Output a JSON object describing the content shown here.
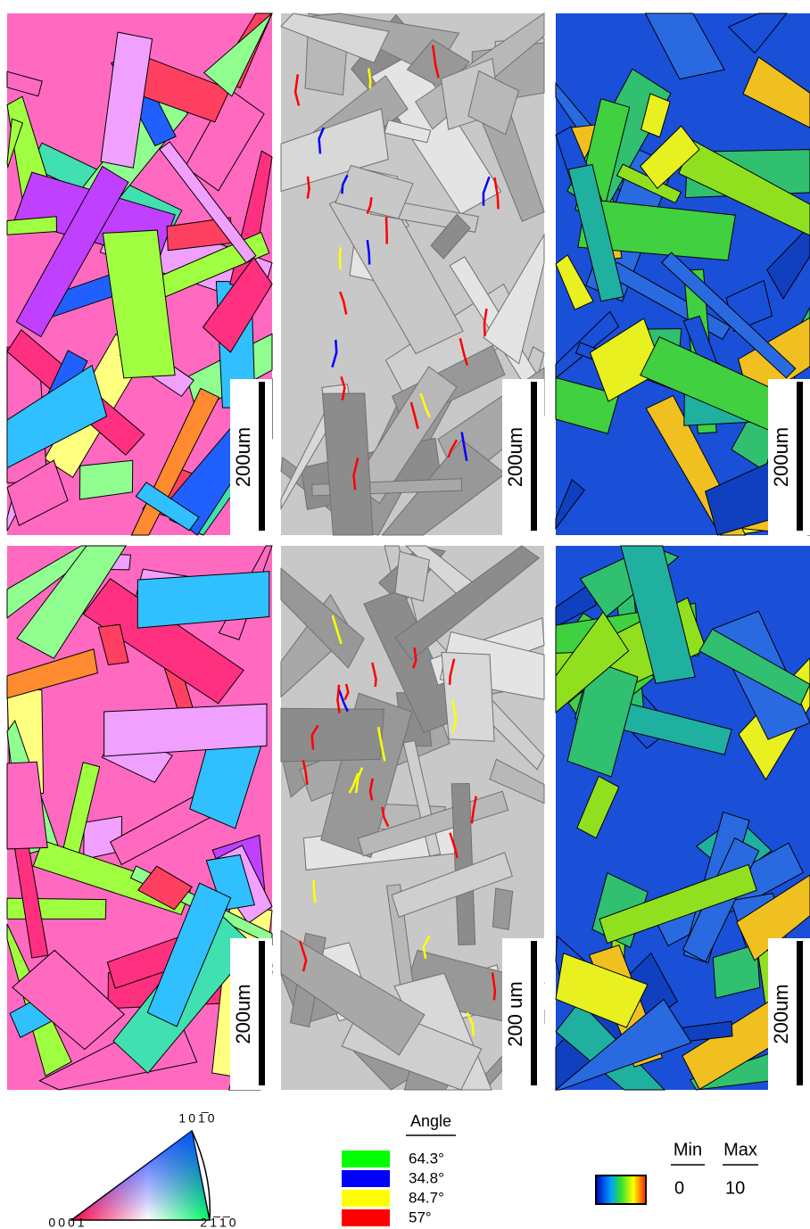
{
  "panels": [
    {
      "scale_label": "200um"
    },
    {
      "scale_label": "200um"
    },
    {
      "scale_label": "200um"
    },
    {
      "scale_label": "200um"
    },
    {
      "scale_label": "200 um"
    },
    {
      "scale_label": "200um"
    }
  ],
  "legends": {
    "ipf": {
      "top": "101̅0",
      "left": "0001",
      "right": "21̅1̅0"
    },
    "angle": {
      "title": "Angle",
      "entries": [
        {
          "label": "64.3°",
          "color": "#00ff00"
        },
        {
          "label": "34.8°",
          "color": "#0000ff"
        },
        {
          "label": "84.7°",
          "color": "#ffff00"
        },
        {
          "label": "57°",
          "color": "#ff0000"
        }
      ]
    },
    "colormap": {
      "min_label": "Min",
      "max_label": "Max",
      "min": 0,
      "max": 10
    }
  }
}
